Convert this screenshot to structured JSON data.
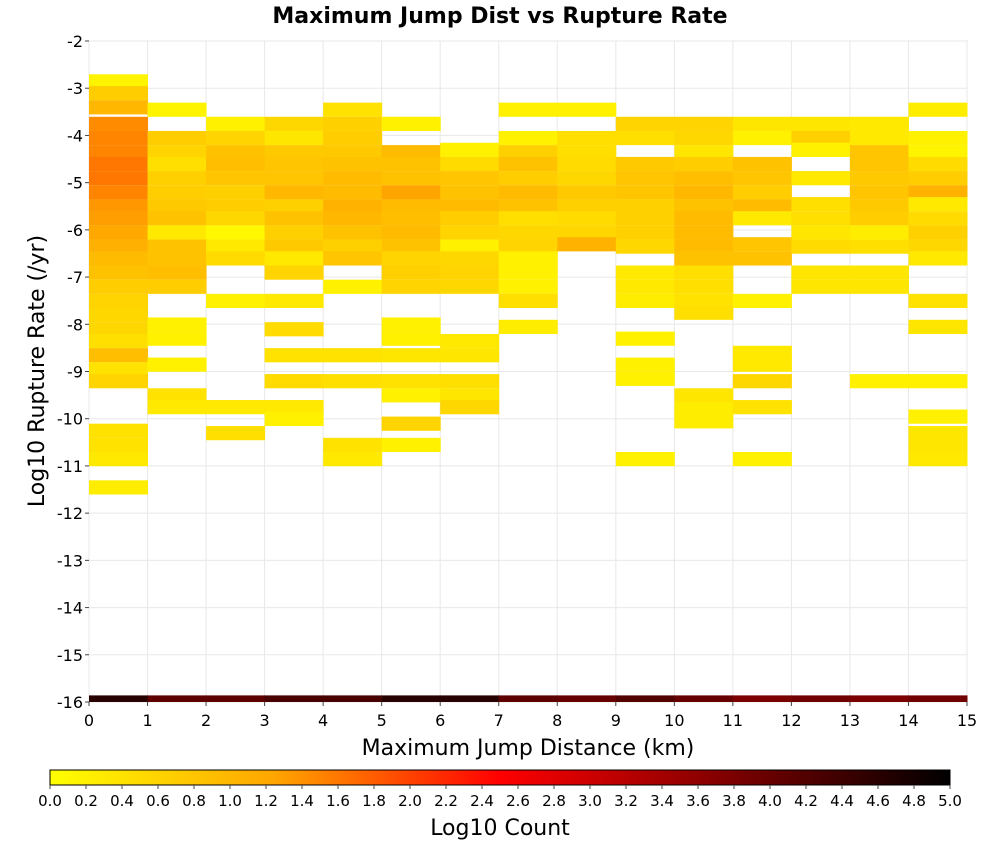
{
  "chart_data": {
    "type": "heatmap",
    "title": "Maximum Jump Dist vs Rupture Rate",
    "xlabel": "Maximum Jump Distance (km)",
    "ylabel": "Log10 Rupture Rate (/yr)",
    "colorbar_label": "Log10 Count",
    "xlim": [
      0,
      15
    ],
    "ylim": [
      -16,
      -2
    ],
    "x_ticks": [
      "0",
      "1",
      "2",
      "3",
      "4",
      "5",
      "6",
      "7",
      "8",
      "9",
      "10",
      "11",
      "12",
      "13",
      "14",
      "15"
    ],
    "y_ticks": [
      "-16",
      "-15",
      "-14",
      "-13",
      "-12",
      "-11",
      "-10",
      "-9",
      "-8",
      "-7",
      "-6",
      "-5",
      "-4",
      "-3",
      "-2"
    ],
    "colorbar_ticks": [
      "0.0",
      "0.2",
      "0.4",
      "0.6",
      "0.8",
      "1.0",
      "1.2",
      "1.4",
      "1.6",
      "1.8",
      "2.0",
      "2.2",
      "2.4",
      "2.6",
      "2.8",
      "3.0",
      "3.2",
      "3.4",
      "3.6",
      "3.8",
      "4.0",
      "4.2",
      "4.4",
      "4.6",
      "4.8",
      "5.0"
    ],
    "color_range": [
      0,
      5
    ],
    "colormap": [
      "#ffff00",
      "#ffa500",
      "#ff0000",
      "#800000",
      "#000000"
    ],
    "bin_width_x": 1,
    "bin_height_y": 0.29,
    "cells": [
      [
        0,
        -2.85,
        0.15
      ],
      [
        0,
        -3.1,
        0.7
      ],
      [
        0,
        -3.4,
        1.0
      ],
      [
        0,
        -3.75,
        1.45
      ],
      [
        0,
        -4.05,
        1.5
      ],
      [
        0,
        -4.35,
        1.5
      ],
      [
        0,
        -4.6,
        1.6
      ],
      [
        0,
        -4.9,
        1.6
      ],
      [
        0,
        -5.2,
        1.5
      ],
      [
        0,
        -5.5,
        1.35
      ],
      [
        0,
        -5.75,
        1.3
      ],
      [
        0,
        -6.05,
        1.2
      ],
      [
        0,
        -6.35,
        1.1
      ],
      [
        0,
        -6.6,
        0.95
      ],
      [
        0,
        -6.9,
        0.85
      ],
      [
        0,
        -7.2,
        0.7
      ],
      [
        0,
        -7.5,
        0.6
      ],
      [
        0,
        -7.8,
        0.55
      ],
      [
        0,
        -8.1,
        0.55
      ],
      [
        0,
        -8.35,
        0.45
      ],
      [
        0,
        -8.65,
        0.9
      ],
      [
        0,
        -8.95,
        0.4
      ],
      [
        0,
        -9.2,
        0.6
      ],
      [
        0,
        -10.25,
        0.4
      ],
      [
        0,
        -10.55,
        0.4
      ],
      [
        0,
        -10.85,
        0.3
      ],
      [
        0,
        -11.45,
        0.25
      ],
      [
        1,
        -3.45,
        0.15
      ],
      [
        1,
        -4.05,
        0.7
      ],
      [
        1,
        -4.35,
        0.6
      ],
      [
        1,
        -4.6,
        0.45
      ],
      [
        1,
        -4.9,
        0.65
      ],
      [
        1,
        -5.2,
        0.7
      ],
      [
        1,
        -5.5,
        0.75
      ],
      [
        1,
        -5.75,
        0.85
      ],
      [
        1,
        -6.05,
        0.3
      ],
      [
        1,
        -6.35,
        0.85
      ],
      [
        1,
        -6.6,
        0.85
      ],
      [
        1,
        -6.9,
        0.9
      ],
      [
        1,
        -7.2,
        0.7
      ],
      [
        1,
        -8.0,
        0.2
      ],
      [
        1,
        -8.3,
        0.2
      ],
      [
        1,
        -8.85,
        0.2
      ],
      [
        1,
        -9.5,
        0.4
      ],
      [
        1,
        -9.75,
        0.3
      ],
      [
        2,
        -3.75,
        0.2
      ],
      [
        2,
        -4.05,
        0.6
      ],
      [
        2,
        -4.35,
        0.85
      ],
      [
        2,
        -4.6,
        0.9
      ],
      [
        2,
        -4.9,
        0.8
      ],
      [
        2,
        -5.2,
        0.65
      ],
      [
        2,
        -5.5,
        0.7
      ],
      [
        2,
        -5.75,
        0.55
      ],
      [
        2,
        -6.05,
        0.1
      ],
      [
        2,
        -6.35,
        0.3
      ],
      [
        2,
        -6.6,
        0.5
      ],
      [
        2,
        -7.5,
        0.2
      ],
      [
        2,
        -9.75,
        0.3
      ],
      [
        2,
        -10.3,
        0.45
      ],
      [
        3,
        -3.75,
        0.55
      ],
      [
        3,
        -4.05,
        0.35
      ],
      [
        3,
        -4.35,
        0.75
      ],
      [
        3,
        -4.6,
        0.8
      ],
      [
        3,
        -4.9,
        0.8
      ],
      [
        3,
        -5.2,
        1.0
      ],
      [
        3,
        -5.5,
        0.65
      ],
      [
        3,
        -5.75,
        0.85
      ],
      [
        3,
        -6.05,
        0.65
      ],
      [
        3,
        -6.35,
        0.75
      ],
      [
        3,
        -6.6,
        0.3
      ],
      [
        3,
        -6.9,
        0.6
      ],
      [
        3,
        -7.5,
        0.3
      ],
      [
        3,
        -8.1,
        0.5
      ],
      [
        3,
        -8.65,
        0.4
      ],
      [
        3,
        -9.2,
        0.5
      ],
      [
        3,
        -9.75,
        0.3
      ],
      [
        3,
        -10.0,
        0.2
      ],
      [
        4,
        -3.45,
        0.4
      ],
      [
        4,
        -3.75,
        0.65
      ],
      [
        4,
        -4.05,
        0.7
      ],
      [
        4,
        -4.35,
        0.75
      ],
      [
        4,
        -4.6,
        0.85
      ],
      [
        4,
        -4.9,
        0.95
      ],
      [
        4,
        -5.2,
        0.95
      ],
      [
        4,
        -5.5,
        1.05
      ],
      [
        4,
        -5.75,
        1.0
      ],
      [
        4,
        -6.05,
        0.85
      ],
      [
        4,
        -6.35,
        0.65
      ],
      [
        4,
        -6.6,
        0.8
      ],
      [
        4,
        -7.2,
        0.2
      ],
      [
        4,
        -8.65,
        0.4
      ],
      [
        4,
        -9.2,
        0.45
      ],
      [
        4,
        -10.55,
        0.4
      ],
      [
        4,
        -10.85,
        0.3
      ],
      [
        5,
        -3.75,
        0.2
      ],
      [
        5,
        -4.35,
        0.95
      ],
      [
        5,
        -4.6,
        0.85
      ],
      [
        5,
        -4.9,
        0.85
      ],
      [
        5,
        -5.2,
        1.25
      ],
      [
        5,
        -5.5,
        0.95
      ],
      [
        5,
        -5.75,
        0.9
      ],
      [
        5,
        -6.05,
        0.95
      ],
      [
        5,
        -6.35,
        0.85
      ],
      [
        5,
        -6.6,
        0.6
      ],
      [
        5,
        -6.9,
        0.65
      ],
      [
        5,
        -7.2,
        0.6
      ],
      [
        5,
        -8.0,
        0.2
      ],
      [
        5,
        -8.3,
        0.2
      ],
      [
        5,
        -8.65,
        0.35
      ],
      [
        5,
        -9.2,
        0.4
      ],
      [
        5,
        -9.5,
        0.2
      ],
      [
        5,
        -10.1,
        0.6
      ],
      [
        5,
        -10.55,
        0.2
      ],
      [
        6,
        -4.3,
        0.2
      ],
      [
        6,
        -4.6,
        0.5
      ],
      [
        6,
        -4.9,
        0.8
      ],
      [
        6,
        -5.2,
        0.85
      ],
      [
        6,
        -5.5,
        0.95
      ],
      [
        6,
        -5.75,
        0.7
      ],
      [
        6,
        -6.05,
        0.6
      ],
      [
        6,
        -6.35,
        0.2
      ],
      [
        6,
        -6.6,
        0.55
      ],
      [
        6,
        -6.9,
        0.6
      ],
      [
        6,
        -7.2,
        0.55
      ],
      [
        6,
        -8.35,
        0.3
      ],
      [
        6,
        -8.65,
        0.35
      ],
      [
        6,
        -9.2,
        0.45
      ],
      [
        6,
        -9.5,
        0.35
      ],
      [
        6,
        -9.75,
        0.55
      ],
      [
        7,
        -3.45,
        0.2
      ],
      [
        7,
        -4.05,
        0.2
      ],
      [
        7,
        -4.35,
        0.65
      ],
      [
        7,
        -4.6,
        0.85
      ],
      [
        7,
        -4.9,
        0.7
      ],
      [
        7,
        -5.2,
        0.95
      ],
      [
        7,
        -5.5,
        0.85
      ],
      [
        7,
        -5.75,
        0.45
      ],
      [
        7,
        -6.05,
        0.55
      ],
      [
        7,
        -6.35,
        0.6
      ],
      [
        7,
        -6.6,
        0.2
      ],
      [
        7,
        -6.9,
        0.2
      ],
      [
        7,
        -7.2,
        0.2
      ],
      [
        7,
        -7.5,
        0.45
      ],
      [
        7,
        -8.05,
        0.25
      ],
      [
        8,
        -3.45,
        0.2
      ],
      [
        8,
        -4.05,
        0.45
      ],
      [
        8,
        -4.35,
        0.45
      ],
      [
        8,
        -4.6,
        0.5
      ],
      [
        8,
        -4.9,
        0.55
      ],
      [
        8,
        -5.2,
        0.75
      ],
      [
        8,
        -5.5,
        0.65
      ],
      [
        8,
        -5.75,
        0.5
      ],
      [
        8,
        -6.05,
        0.55
      ],
      [
        8,
        -6.3,
        1.05
      ],
      [
        9,
        -3.75,
        0.6
      ],
      [
        9,
        -4.05,
        0.45
      ],
      [
        9,
        -4.6,
        0.75
      ],
      [
        9,
        -4.9,
        0.8
      ],
      [
        9,
        -5.2,
        0.8
      ],
      [
        9,
        -5.5,
        0.65
      ],
      [
        9,
        -5.75,
        0.65
      ],
      [
        9,
        -6.05,
        0.65
      ],
      [
        9,
        -6.35,
        0.55
      ],
      [
        9,
        -6.9,
        0.3
      ],
      [
        9,
        -7.2,
        0.3
      ],
      [
        9,
        -7.5,
        0.25
      ],
      [
        9,
        -8.3,
        0.2
      ],
      [
        9,
        -8.85,
        0.2
      ],
      [
        9,
        -9.15,
        0.2
      ],
      [
        9,
        -10.85,
        0.2
      ],
      [
        10,
        -3.75,
        0.6
      ],
      [
        10,
        -4.05,
        0.55
      ],
      [
        10,
        -4.35,
        0.35
      ],
      [
        10,
        -4.6,
        0.7
      ],
      [
        10,
        -4.9,
        0.9
      ],
      [
        10,
        -5.2,
        1.0
      ],
      [
        10,
        -5.5,
        0.85
      ],
      [
        10,
        -5.75,
        0.95
      ],
      [
        10,
        -6.05,
        0.95
      ],
      [
        10,
        -6.35,
        0.95
      ],
      [
        10,
        -6.6,
        0.85
      ],
      [
        10,
        -6.9,
        0.45
      ],
      [
        10,
        -7.2,
        0.45
      ],
      [
        10,
        -7.5,
        0.4
      ],
      [
        10,
        -7.75,
        0.45
      ],
      [
        10,
        -9.5,
        0.35
      ],
      [
        10,
        -9.8,
        0.25
      ],
      [
        10,
        -10.05,
        0.25
      ],
      [
        11,
        -3.75,
        0.35
      ],
      [
        11,
        -4.05,
        0.2
      ],
      [
        11,
        -4.6,
        0.85
      ],
      [
        11,
        -4.9,
        0.8
      ],
      [
        11,
        -5.2,
        0.7
      ],
      [
        11,
        -5.5,
        0.95
      ],
      [
        11,
        -5.75,
        0.3
      ],
      [
        11,
        -6.3,
        0.8
      ],
      [
        11,
        -6.6,
        0.85
      ],
      [
        11,
        -7.5,
        0.2
      ],
      [
        11,
        -8.6,
        0.3
      ],
      [
        11,
        -8.85,
        0.3
      ],
      [
        11,
        -9.2,
        0.55
      ],
      [
        11,
        -9.75,
        0.4
      ],
      [
        11,
        -10.85,
        0.2
      ],
      [
        12,
        -3.75,
        0.35
      ],
      [
        12,
        -4.05,
        0.65
      ],
      [
        12,
        -4.3,
        0.2
      ],
      [
        12,
        -4.9,
        0.3
      ],
      [
        12,
        -5.45,
        0.45
      ],
      [
        12,
        -5.75,
        0.45
      ],
      [
        12,
        -6.05,
        0.35
      ],
      [
        12,
        -6.35,
        0.5
      ],
      [
        12,
        -6.9,
        0.35
      ],
      [
        12,
        -7.2,
        0.35
      ],
      [
        13,
        -3.75,
        0.3
      ],
      [
        13,
        -4.05,
        0.3
      ],
      [
        13,
        -4.35,
        0.8
      ],
      [
        13,
        -4.6,
        0.8
      ],
      [
        13,
        -4.9,
        0.75
      ],
      [
        13,
        -5.2,
        0.8
      ],
      [
        13,
        -5.5,
        0.75
      ],
      [
        13,
        -5.75,
        0.7
      ],
      [
        13,
        -6.05,
        0.25
      ],
      [
        13,
        -6.35,
        0.45
      ],
      [
        13,
        -6.9,
        0.35
      ],
      [
        13,
        -7.2,
        0.35
      ],
      [
        13,
        -9.2,
        0.2
      ],
      [
        14,
        -3.45,
        0.25
      ],
      [
        14,
        -4.05,
        0.2
      ],
      [
        14,
        -4.35,
        0.15
      ],
      [
        14,
        -4.6,
        0.5
      ],
      [
        14,
        -4.9,
        0.7
      ],
      [
        14,
        -5.2,
        1.05
      ],
      [
        14,
        -5.45,
        0.3
      ],
      [
        14,
        -5.75,
        0.5
      ],
      [
        14,
        -6.05,
        0.65
      ],
      [
        14,
        -6.35,
        0.55
      ],
      [
        14,
        -6.6,
        0.3
      ],
      [
        14,
        -7.5,
        0.4
      ],
      [
        14,
        -8.05,
        0.35
      ],
      [
        14,
        -9.2,
        0.2
      ],
      [
        14,
        -9.95,
        0.2
      ],
      [
        14,
        -10.3,
        0.35
      ],
      [
        14,
        -10.55,
        0.35
      ],
      [
        14,
        -10.85,
        0.3
      ]
    ],
    "bottom_row": {
      "y": -16.0,
      "values": [
        4.6,
        4.1,
        4.1,
        4.3,
        4.3,
        4.6,
        4.6,
        4.1,
        4.0,
        4.2,
        4.0,
        3.8,
        3.9,
        3.8,
        3.9
      ]
    },
    "grid": true
  }
}
